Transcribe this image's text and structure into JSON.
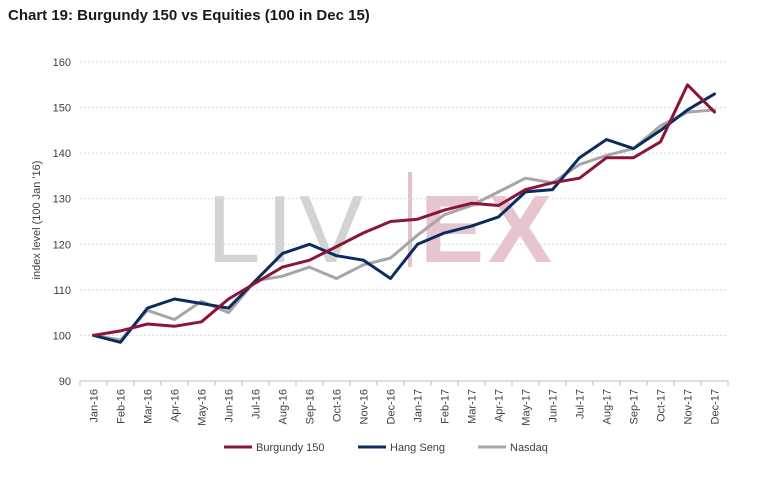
{
  "chart_data": {
    "type": "line",
    "title": "Chart 19: Burgundy 150 vs Equities (100 in Dec 15)",
    "xlabel": "",
    "ylabel": "index level (100 Jan '16)",
    "ylim": [
      90,
      160
    ],
    "yticks": [
      90,
      100,
      110,
      120,
      130,
      140,
      150,
      160
    ],
    "grid": true,
    "legend_position": "bottom",
    "watermark": "LIV-EX",
    "categories": [
      "Jan-16",
      "Feb-16",
      "Mar-16",
      "Apr-16",
      "May-16",
      "Jun-16",
      "Jul-16",
      "Aug-16",
      "Sep-16",
      "Oct-16",
      "Nov-16",
      "Dec-16",
      "Jan-17",
      "Feb-17",
      "Mar-17",
      "Apr-17",
      "May-17",
      "Jun-17",
      "Jul-17",
      "Aug-17",
      "Sep-17",
      "Oct-17",
      "Nov-17",
      "Dec-17"
    ],
    "series": [
      {
        "name": "Burgundy 150",
        "color": "#8b1538",
        "values": [
          100,
          101,
          102.5,
          102,
          103,
          108,
          111.5,
          115,
          116.5,
          119.5,
          122.5,
          125,
          125.5,
          127.5,
          129,
          128.5,
          132,
          133.5,
          134.5,
          139,
          139,
          142.5,
          155,
          149
        ]
      },
      {
        "name": "Hang Seng",
        "color": "#0d2c5e",
        "values": [
          100,
          98.5,
          106,
          108,
          107,
          106,
          112,
          118,
          120,
          117.5,
          116.5,
          112.5,
          120,
          122.5,
          124,
          126,
          131.5,
          132,
          139,
          143,
          141,
          145,
          149.5,
          153
        ]
      },
      {
        "name": "Nasdaq",
        "color": "#a6a6a6",
        "values": [
          100,
          99,
          105.5,
          103.5,
          107.5,
          105,
          112,
          113,
          115,
          112.5,
          115.5,
          117,
          122,
          126.5,
          128.5,
          131.5,
          134.5,
          133.5,
          137.5,
          139.5,
          141,
          146,
          149,
          149.5
        ]
      }
    ]
  }
}
